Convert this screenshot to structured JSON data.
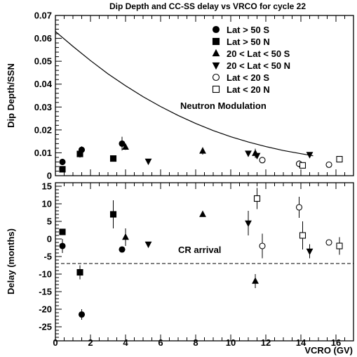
{
  "chart_data": {
    "type": "scatter",
    "title": "Dip Depth and CC-SS delay vs VRCO for cycle 22",
    "xlabel": "VCRO (GV)",
    "xlim": [
      0,
      17
    ],
    "xticks": [
      0,
      2,
      4,
      6,
      8,
      10,
      12,
      14,
      16
    ],
    "legend_position": "top-right",
    "marker_styles": {
      "Lat > 50 S": "circle-filled",
      "Lat > 50 N": "square-filled",
      "20 < Lat < 50 S": "triangle-up-filled",
      "20 < Lat < 50 N": "triangle-down-filled",
      "Lat < 20 S": "circle-open",
      "Lat < 20 N": "square-open"
    },
    "panels": [
      {
        "id": "top",
        "ylabel": "Dip Depth/SSN",
        "ylim": [
          0,
          0.07
        ],
        "yticks": [
          0,
          0.01,
          0.02,
          0.03,
          0.04,
          0.05,
          0.06,
          0.07
        ],
        "ytick_labels": [
          "0",
          "0.01",
          "0.02",
          "0.03",
          "0.04",
          "0.05",
          "0.06",
          "0.07"
        ],
        "curve": {
          "name": "Neutron Modulation",
          "x": [
            0,
            1,
            2,
            3,
            4,
            5,
            6,
            7,
            8,
            9,
            10,
            11,
            12,
            13,
            14,
            14.7
          ],
          "y": [
            0.063,
            0.0565,
            0.0503,
            0.0445,
            0.0393,
            0.0345,
            0.0302,
            0.0263,
            0.0228,
            0.0197,
            0.017,
            0.0147,
            0.0127,
            0.011,
            0.0096,
            0.0087
          ]
        },
        "annotation": "Neutron Modulation",
        "series": [
          {
            "name": "Lat > 50 S",
            "x": [
              0.4,
              1.5,
              3.8
            ],
            "y": [
              0.006,
              0.0113,
              0.014
            ],
            "err": [
              0.0005,
              0.0015,
              0.003
            ]
          },
          {
            "name": "Lat > 50 N",
            "x": [
              0.4,
              1.4,
              3.3
            ],
            "y": [
              0.0028,
              0.0095,
              0.0075
            ],
            "err": [
              0.0006,
              0.0016,
              0.0012
            ]
          },
          {
            "name": "20 < Lat < 50 S",
            "x": [
              4.0,
              8.4,
              11.4
            ],
            "y": [
              0.0125,
              0.0108,
              0.0098
            ],
            "err": [
              0.0012,
              0.0016,
              0.002
            ]
          },
          {
            "name": "20 < Lat < 50 N",
            "x": [
              5.3,
              11.0,
              11.5,
              14.5
            ],
            "y": [
              0.0063,
              0.0098,
              0.0088,
              0.0092
            ],
            "err": [
              0.0004,
              0.0008,
              0.0008,
              0.0008
            ]
          },
          {
            "name": "Lat < 20 S",
            "x": [
              11.8,
              13.9,
              15.6
            ],
            "y": [
              0.0068,
              0.0052,
              0.0048
            ],
            "err": [
              0.0005,
              0.0015,
              0.0012
            ]
          },
          {
            "name": "Lat < 20 N",
            "x": [
              14.1,
              16.2
            ],
            "y": [
              0.0045,
              0.0072
            ],
            "err": [
              0.0004,
              0.0005
            ]
          }
        ]
      },
      {
        "id": "bottom",
        "ylabel": "Delay (months)",
        "ylim": [
          -29,
          16
        ],
        "yticks": [
          -25,
          -20,
          -15,
          -10,
          -5,
          0,
          5,
          10,
          15
        ],
        "ytick_labels": [
          "-25",
          "-20",
          "-15",
          "-10",
          "-5",
          "0",
          "5",
          "10",
          "15"
        ],
        "hline": {
          "y": -7,
          "label": "CR arrival"
        },
        "annotation": "CR arrival",
        "series": [
          {
            "name": "Lat > 50 S",
            "x": [
              0.4,
              1.5,
              3.8
            ],
            "y": [
              -2,
              -21.5,
              -3
            ],
            "err": [
              2,
              1.5,
              0.5
            ]
          },
          {
            "name": "Lat > 50 N",
            "x": [
              0.4,
              1.4,
              3.3
            ],
            "y": [
              2,
              -9.5,
              7
            ],
            "err": [
              0.5,
              2,
              4
            ]
          },
          {
            "name": "20 < Lat < 50 S",
            "x": [
              4.0,
              8.4,
              11.4
            ],
            "y": [
              0.5,
              7,
              -12
            ],
            "err": [
              2.5,
              0.5,
              2
            ]
          },
          {
            "name": "20 < Lat < 50 N",
            "x": [
              5.3,
              11.0,
              14.5
            ],
            "y": [
              -1.5,
              4.5,
              -3.5
            ],
            "err": [
              0.5,
              3.5,
              2
            ]
          },
          {
            "name": "Lat < 20 S",
            "x": [
              11.8,
              13.9,
              15.6
            ],
            "y": [
              -2,
              9,
              -1
            ],
            "err": [
              3.5,
              3,
              0.5
            ]
          },
          {
            "name": "Lat < 20 N",
            "x": [
              11.5,
              14.1,
              16.2
            ],
            "y": [
              11.5,
              1,
              -2
            ],
            "err": [
              3,
              4,
              2.5
            ]
          }
        ]
      }
    ]
  }
}
